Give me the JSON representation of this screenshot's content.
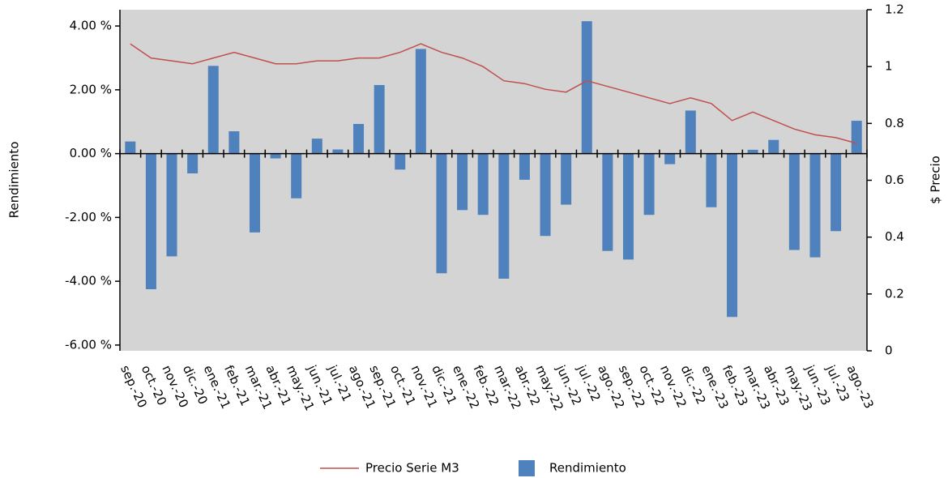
{
  "chart_data": {
    "type": "combo",
    "categories": [
      "sep.-20",
      "oct.-20",
      "nov.-20",
      "dic.-20",
      "ene.-21",
      "feb.-21",
      "mar.-21",
      "abr.-21",
      "may.-21",
      "jun.-21",
      "jul.-21",
      "ago.-21",
      "sep.-21",
      "oct.-21",
      "nov.-21",
      "dic.-21",
      "ene.-22",
      "feb.-22",
      "mar.-22",
      "abr.-22",
      "may.-22",
      "jun.-22",
      "jul.-22",
      "ago.-22",
      "sep.-22",
      "oct.-22",
      "nov.-22",
      "dic.-22",
      "ene.-23",
      "feb.-23",
      "mar.-23",
      "abr.-23",
      "may.-23",
      "jun.-23",
      "jul.-23",
      "ago.-23"
    ],
    "y_label": "Rendimiento",
    "y2_label": "$ Precio",
    "ylim": [
      -6.18,
      4.51
    ],
    "yticks": [
      {
        "value": 4,
        "label": "4.00 %"
      },
      {
        "value": 2,
        "label": "2.00 %"
      },
      {
        "value": 0,
        "label": "0.00 %"
      },
      {
        "value": -2,
        "label": "-2.00 %"
      },
      {
        "value": -4,
        "label": "-4.00 %"
      },
      {
        "value": -6,
        "label": "-6.00 %"
      }
    ],
    "y2lim": [
      0,
      1.2
    ],
    "y2ticks": [
      0,
      0.2,
      0.4,
      0.6,
      0.8,
      1,
      1.2
    ],
    "background": "#d4d4d4",
    "series": [
      {
        "name": "Precio Serie M3",
        "type": "line",
        "axis": "y2",
        "color": "#c0504d",
        "values": [
          1.08,
          1.03,
          1.02,
          1.01,
          1.03,
          1.05,
          1.03,
          1.01,
          1.01,
          1.02,
          1.02,
          1.03,
          1.03,
          1.05,
          1.08,
          1.05,
          1.03,
          1.0,
          0.95,
          0.94,
          0.92,
          0.91,
          0.95,
          0.93,
          0.91,
          0.89,
          0.87,
          0.89,
          0.87,
          0.81,
          0.84,
          0.81,
          0.78,
          0.76,
          0.75,
          0.73
        ]
      },
      {
        "name": "Rendimiento",
        "type": "bar",
        "color": "#4f81bd",
        "values": [
          0.38,
          -4.25,
          -3.22,
          -0.62,
          2.75,
          0.7,
          -2.47,
          -0.15,
          -1.4,
          0.47,
          0.13,
          0.93,
          2.15,
          -0.5,
          3.28,
          -3.75,
          -1.77,
          -1.92,
          -3.92,
          -0.82,
          -2.58,
          -1.6,
          4.15,
          -3.05,
          -3.32,
          -1.92,
          -0.33,
          1.35,
          -1.68,
          -5.12,
          0.12,
          0.43,
          -3.02,
          -3.25,
          -2.43,
          1.03
        ]
      }
    ]
  }
}
